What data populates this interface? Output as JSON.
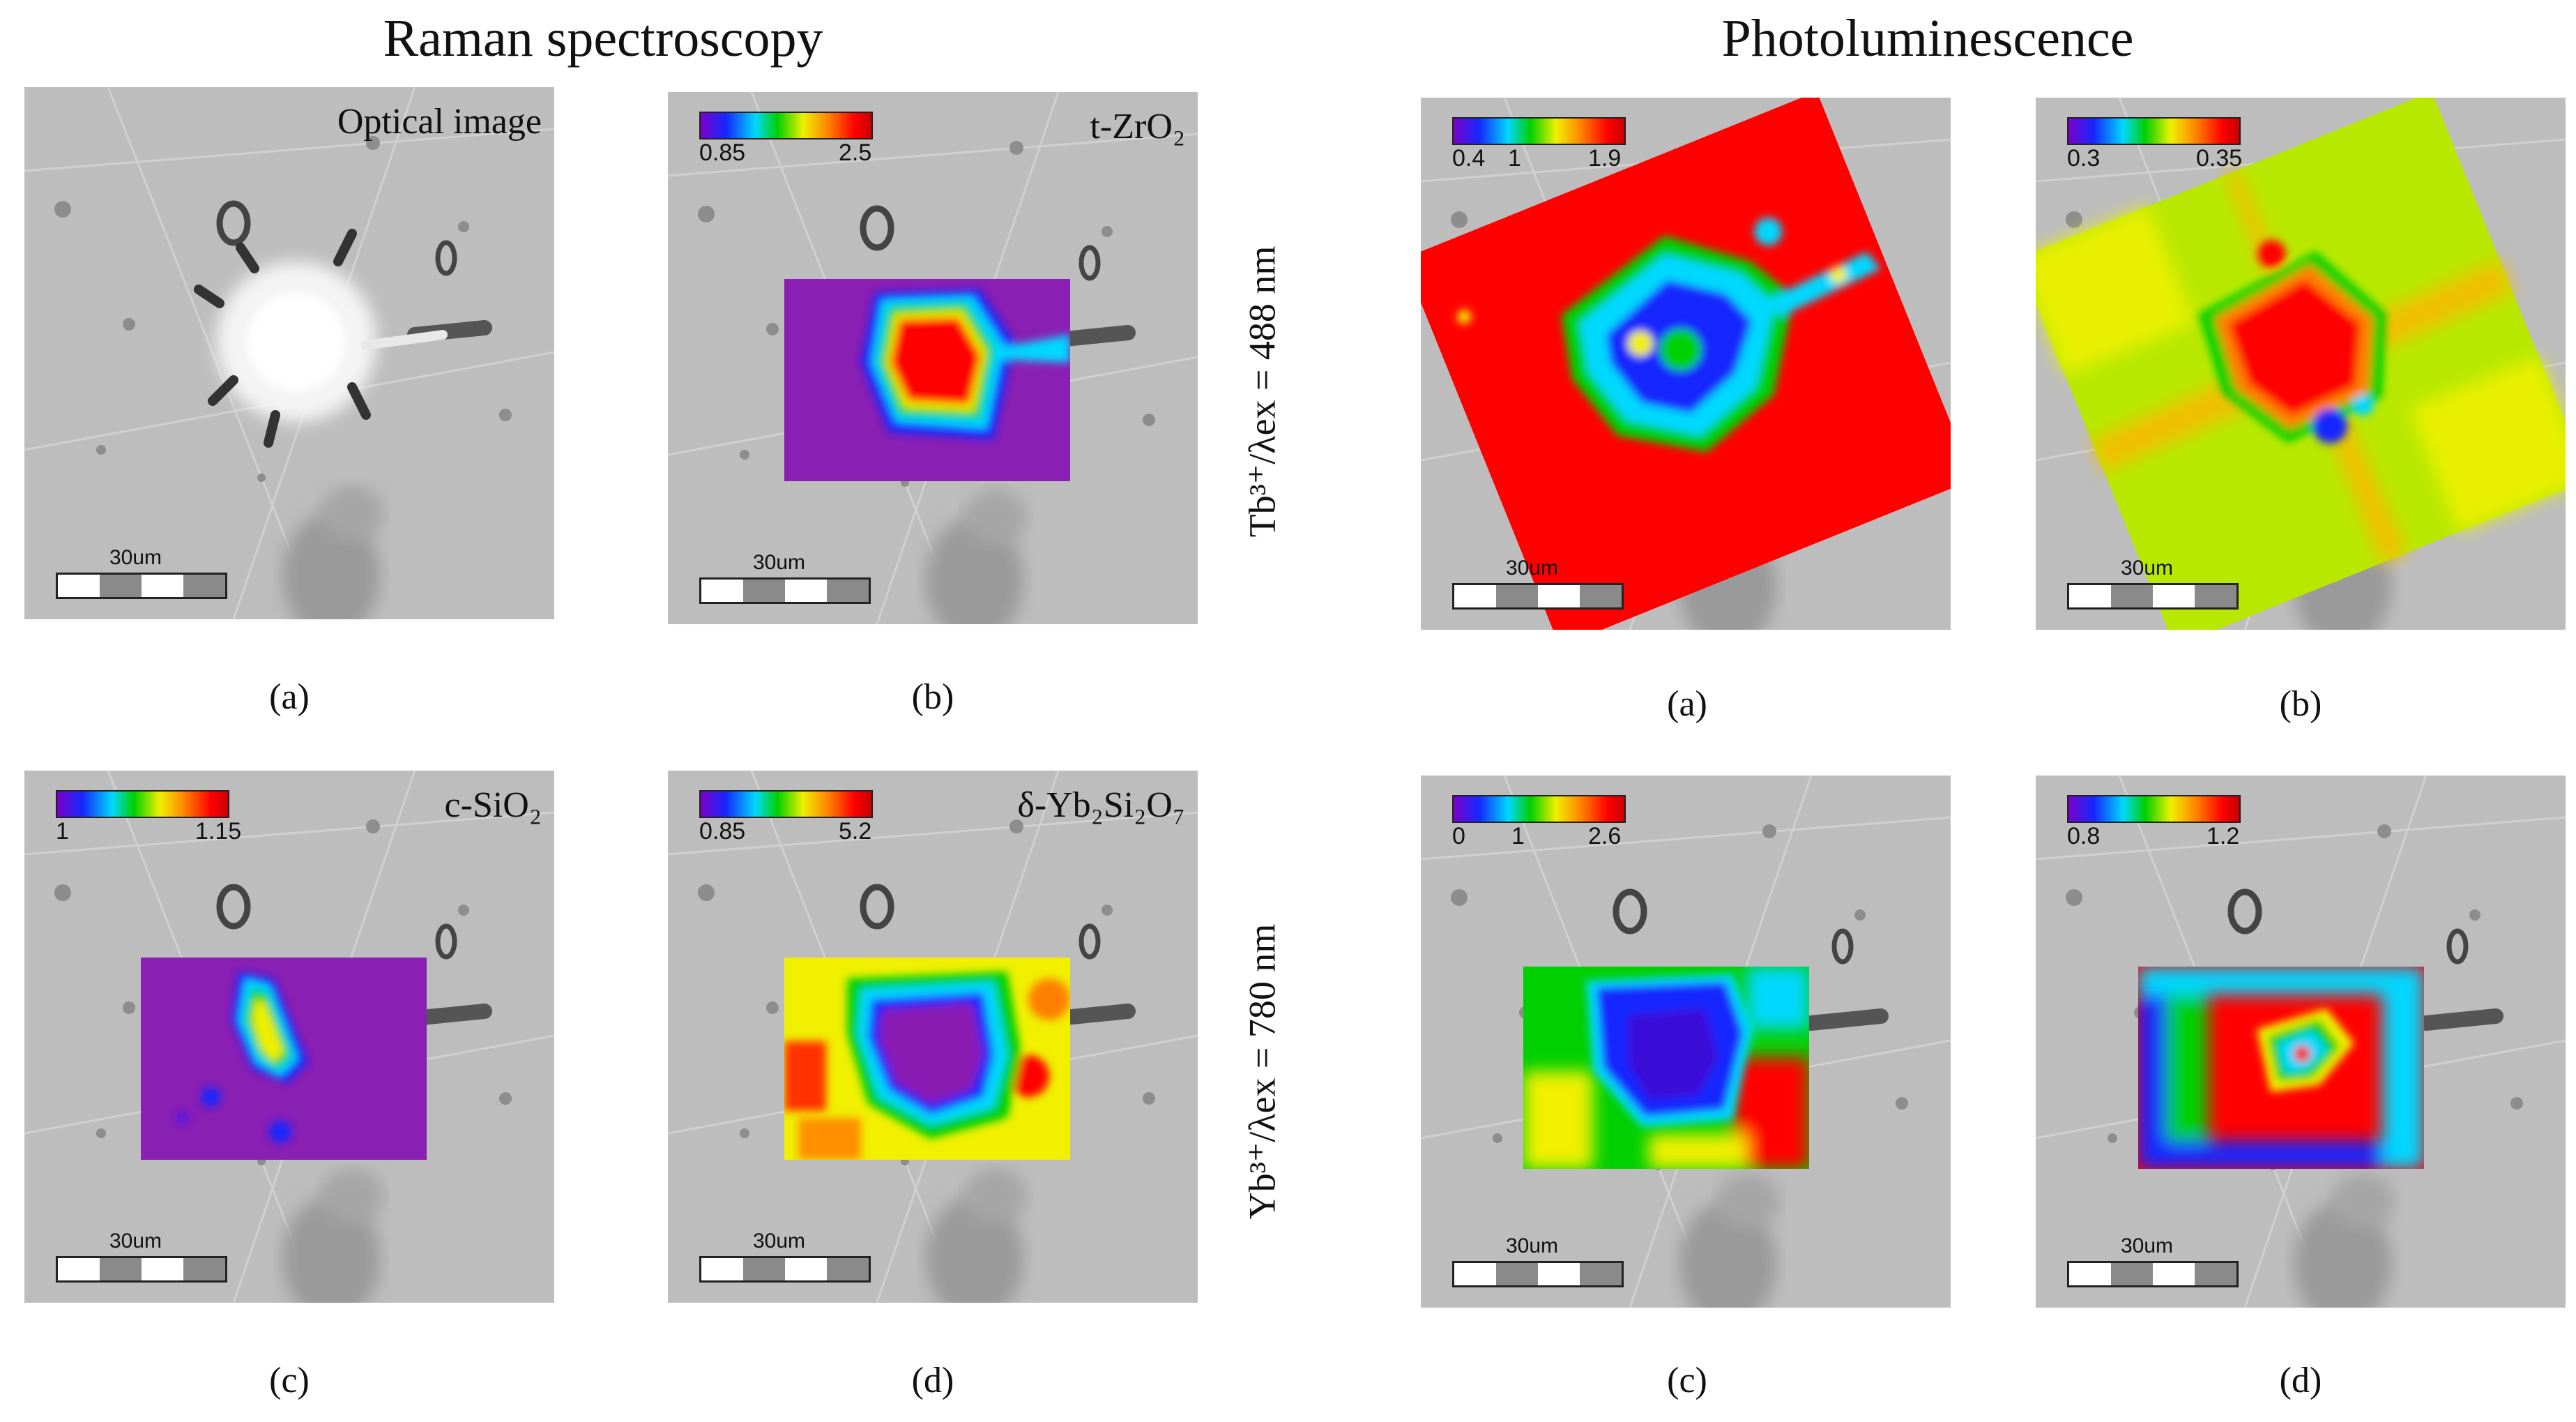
{
  "headings": {
    "raman": "Raman spectroscopy",
    "pl": "Photoluminescence"
  },
  "row_labels": {
    "tb": "Tb³⁺/λex = 488 nm",
    "yb": "Yb³⁺/λex = 780 nm"
  },
  "scale_label": "30um",
  "raman": {
    "a": {
      "title": "Optical image",
      "sublabel": "(a)"
    },
    "b": {
      "title": "t-ZrO₂",
      "min": "0.85",
      "max": "2.5",
      "sublabel": "(b)"
    },
    "c": {
      "title": "c-SiO₂",
      "min": "1",
      "max": "1.15",
      "sublabel": "(c)"
    },
    "d": {
      "title": "δ-Yb₂Si₂O₇",
      "min": "0.85",
      "max": "5.2",
      "sublabel": "(d)"
    }
  },
  "pl": {
    "a": {
      "t1": "0.4",
      "t2": "1",
      "t3": "1.9",
      "sublabel": "(a)"
    },
    "b": {
      "min": "0.3",
      "max": "0.35",
      "sublabel": "(b)"
    },
    "c": {
      "t1": "0",
      "t2": "1",
      "t3": "2.6",
      "sublabel": "(c)"
    },
    "d": {
      "min": "0.8",
      "max": "1.2",
      "sublabel": "(d)"
    }
  },
  "colormap": [
    "#7a00c8",
    "#1428ff",
    "#00d8ff",
    "#00d000",
    "#f0f000",
    "#ff8000",
    "#ff0000",
    "#c80000"
  ]
}
